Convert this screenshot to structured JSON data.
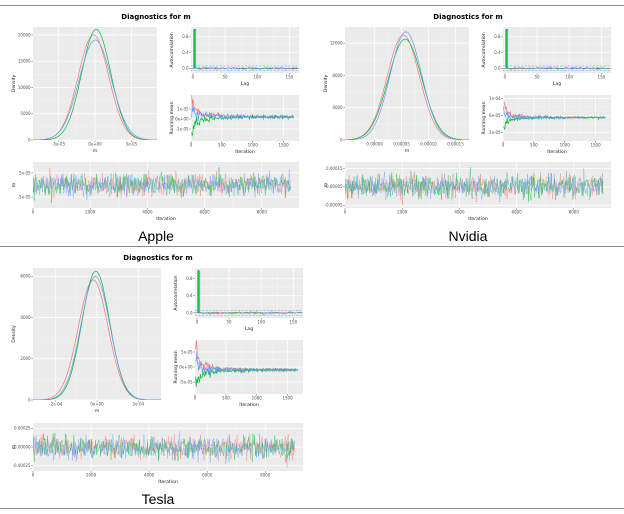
{
  "theme": {
    "background": "#ffffff",
    "divider_color": "#8a8a8a",
    "panel_bg": "#ebebeb",
    "grid_major": "#ffffff",
    "grid_minor": "#f6f6f6",
    "axis_text_color": "#4d4d4d",
    "axis_title_color": "#1a1a1a",
    "title_color": "#000000",
    "chain_colors": [
      "#F8766D",
      "#00BA38",
      "#619CFF"
    ],
    "acf_ci_color": "#619CFF"
  },
  "chart_data": [
    {
      "label": "Apple",
      "title": "Diagnostics for m",
      "type": "diagnostics_panel",
      "chains": 3,
      "chain_offsets": [
        -0.1,
        0.08,
        0.02
      ],
      "chain_sd_scales": [
        1,
        0.95,
        1.05
      ],
      "density": {
        "type": "line",
        "xlabel": "m",
        "ylabel": "Density",
        "mean": 0,
        "sd": 2.1e-05,
        "peak": 20000,
        "xlim": [
          -8.5e-05,
          8.5e-05
        ],
        "ylim": [
          0,
          21500
        ],
        "x_ticks": {
          "vals": [
            -5e-05,
            0,
            5e-05
          ],
          "labels": [
            "-5e-05",
            "0e+00",
            "5e-05"
          ]
        },
        "y_ticks": {
          "vals": [
            0,
            5000,
            10000,
            15000,
            20000
          ],
          "labels": [
            "0",
            "5000",
            "10000",
            "15000",
            "20000"
          ]
        }
      },
      "acf": {
        "type": "line",
        "xlabel": "Lag",
        "ylabel": "Autocorrelation",
        "lag0": 1.0,
        "ci": 0.06,
        "xlim": [
          -3,
          165
        ],
        "ylim": [
          -0.12,
          1.05
        ],
        "x_ticks": {
          "vals": [
            0,
            50,
            100,
            150
          ],
          "labels": [
            "0",
            "50",
            "100",
            "150"
          ]
        },
        "y_ticks": {
          "vals": [
            0,
            0.4,
            0.8
          ],
          "labels": [
            "0.0",
            "0.4",
            "0.8"
          ]
        }
      },
      "running_mean": {
        "type": "line",
        "xlabel": "Iteration",
        "ylabel": "Running mean",
        "target": 2e-06,
        "start_spread": 1.6e-05,
        "xlim": [
          0,
          1750
        ],
        "ylim": [
          -2.2e-05,
          2.4e-05
        ],
        "x_ticks": {
          "vals": [
            0,
            500,
            1000,
            1500
          ],
          "labels": [
            "0",
            "500",
            "1000",
            "1500"
          ]
        },
        "y_ticks": {
          "vals": [
            -1e-05,
            0,
            1e-05
          ],
          "labels": [
            "-1e-05",
            "0e+00",
            "1e-05"
          ]
        }
      },
      "trace": {
        "type": "line",
        "xlabel": "Iteration",
        "ylabel": "m",
        "xlim": [
          0,
          9300
        ],
        "ylim": [
          -9.5e-05,
          9.5e-05
        ],
        "x_ticks": {
          "vals": [
            0,
            2000,
            4000,
            6000,
            8000
          ],
          "labels": [
            "0",
            "2000",
            "4000",
            "6000",
            "8000"
          ]
        },
        "y_ticks": {
          "vals": [
            -5e-05,
            5e-05
          ],
          "labels": [
            "-5e-05",
            "5e-05"
          ]
        }
      }
    },
    {
      "label": "Nvidia",
      "title": "Diagnostics for m",
      "type": "diagnostics_panel",
      "chains": 3,
      "chain_offsets": [
        -0.06,
        0.05,
        0.1
      ],
      "chain_sd_scales": [
        1,
        1.04,
        0.97
      ],
      "density": {
        "type": "line",
        "xlabel": "m",
        "ylabel": "Density",
        "mean": 5.5e-05,
        "sd": 3e-05,
        "peak": 13000,
        "xlim": [
          -5.5e-05,
          0.000175
        ],
        "ylim": [
          0,
          14000
        ],
        "x_ticks": {
          "vals": [
            0,
            5e-05,
            0.0001,
            0.00015
          ],
          "labels": [
            "0.00000",
            "0.00005",
            "0.00010",
            "0.00015"
          ]
        },
        "y_ticks": {
          "vals": [
            0,
            4000,
            8000,
            12000
          ],
          "labels": [
            "0",
            "4000",
            "8000",
            "12000"
          ]
        }
      },
      "acf": {
        "type": "line",
        "xlabel": "Lag",
        "ylabel": "Autocorrelation",
        "lag0": 1.0,
        "ci": 0.06,
        "xlim": [
          -3,
          165
        ],
        "ylim": [
          -0.12,
          1.05
        ],
        "x_ticks": {
          "vals": [
            0,
            50,
            100,
            150
          ],
          "labels": [
            "0",
            "50",
            "100",
            "150"
          ]
        },
        "y_ticks": {
          "vals": [
            0,
            0.4,
            0.8
          ],
          "labels": [
            "0.0",
            "0.4",
            "0.8"
          ]
        }
      },
      "running_mean": {
        "type": "line",
        "xlabel": "Iteration",
        "ylabel": "Running mean",
        "target": 5.5e-05,
        "start_spread": 2.4e-05,
        "xlim": [
          0,
          1750
        ],
        "ylim": [
          0,
          0.000108
        ],
        "x_ticks": {
          "vals": [
            0,
            500,
            1000,
            1500
          ],
          "labels": [
            "0",
            "500",
            "1000",
            "1500"
          ]
        },
        "y_ticks": {
          "vals": [
            2e-05,
            6e-05,
            0.0001
          ],
          "labels": [
            "2e-05",
            "6e-05",
            "1e-04"
          ]
        }
      },
      "trace": {
        "type": "line",
        "xlabel": "Iteration",
        "ylabel": "m",
        "xlim": [
          0,
          9300
        ],
        "ylim": [
          -6.5e-05,
          0.000185
        ],
        "x_ticks": {
          "vals": [
            0,
            2000,
            4000,
            6000,
            8000
          ],
          "labels": [
            "0",
            "2000",
            "4000",
            "6000",
            "8000"
          ]
        },
        "y_ticks": {
          "vals": [
            -5e-05,
            5e-05,
            0.00015
          ],
          "labels": [
            "-0.00005",
            "0.00005",
            "0.00015"
          ]
        }
      }
    },
    {
      "label": "Tesla",
      "title": "Diagnostics for m",
      "type": "diagnostics_panel",
      "chains": 3,
      "chain_offsets": [
        -0.12,
        0.06,
        0.03
      ],
      "chain_sd_scales": [
        1.03,
        0.96,
        1
      ],
      "density": {
        "type": "line",
        "xlabel": "m",
        "ylabel": "Density",
        "mean": -1e-05,
        "sd": 7e-05,
        "peak": 6000,
        "xlim": [
          -0.00031,
          0.00031
        ],
        "ylim": [
          0,
          6400
        ],
        "x_ticks": {
          "vals": [
            -0.0002,
            0,
            0.0002
          ],
          "labels": [
            "-2e-04",
            "0e+00",
            "2e-04"
          ]
        },
        "y_ticks": {
          "vals": [
            0,
            2000,
            4000,
            6000
          ],
          "labels": [
            "0",
            "2000",
            "4000",
            "6000"
          ]
        }
      },
      "acf": {
        "type": "line",
        "xlabel": "Lag",
        "ylabel": "Autocorrelation",
        "lag0": 1.0,
        "ci": 0.06,
        "xlim": [
          -3,
          165
        ],
        "ylim": [
          -0.12,
          1.05
        ],
        "x_ticks": {
          "vals": [
            0,
            50,
            100,
            150
          ],
          "labels": [
            "0",
            "50",
            "100",
            "150"
          ]
        },
        "y_ticks": {
          "vals": [
            0,
            0.4,
            0.8
          ],
          "labels": [
            "0.0",
            "0.4",
            "0.8"
          ]
        }
      },
      "running_mean": {
        "type": "line",
        "xlabel": "Iteration",
        "ylabel": "Running mean",
        "target": -1e-05,
        "start_spread": 5.5e-05,
        "xlim": [
          0,
          1750
        ],
        "ylim": [
          -9e-05,
          9e-05
        ],
        "x_ticks": {
          "vals": [
            0,
            500,
            1000,
            1500
          ],
          "labels": [
            "0",
            "500",
            "1000",
            "1500"
          ]
        },
        "y_ticks": {
          "vals": [
            -5e-05,
            0,
            5e-05
          ],
          "labels": [
            "-5e-05",
            "0e+00",
            "5e-05"
          ]
        }
      },
      "trace": {
        "type": "line",
        "xlabel": "Iteration",
        "ylabel": "m",
        "xlim": [
          0,
          9300
        ],
        "ylim": [
          -0.00032,
          0.00032
        ],
        "x_ticks": {
          "vals": [
            0,
            2000,
            4000,
            6000,
            8000
          ],
          "labels": [
            "0",
            "2000",
            "4000",
            "6000",
            "8000"
          ]
        },
        "y_ticks": {
          "vals": [
            -0.00025,
            0,
            0.00025
          ],
          "labels": [
            "-0.00025",
            "0.00000",
            "0.00025"
          ]
        }
      }
    }
  ]
}
